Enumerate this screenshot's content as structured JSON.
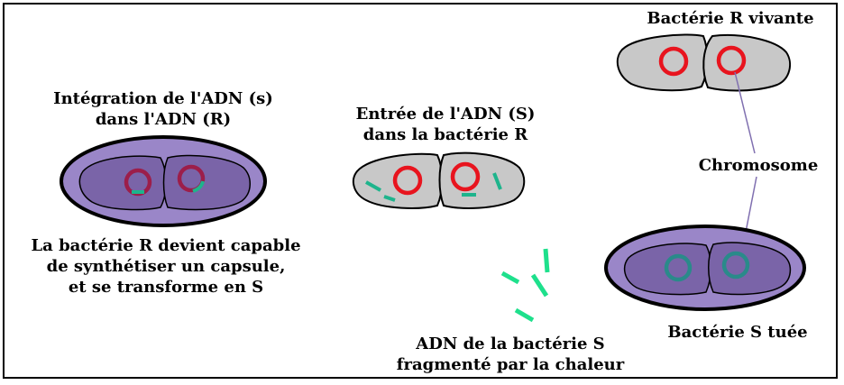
{
  "labels": {
    "bacteria_r_alive": "Bactérie R vivante",
    "integration_line1": "Intégration de l'ADN (s)",
    "integration_line2": "dans l'ADN (R)",
    "entry_line1": "Entrée de l'ADN (S)",
    "entry_line2": "dans la bactérie R",
    "chromosome": "Chromosome",
    "transform_line1": "La bactérie R devient capable",
    "transform_line2": "de synthétiser un capsule,",
    "transform_line3": "et se transforme en S",
    "bacteria_s_killed": "Bactérie S tuée",
    "dna_line1": "ADN de la bactérie S",
    "dna_line2": "fragmenté par la chaleur"
  },
  "colors": {
    "r_cell_fill": "#c8c8c8",
    "s_capsule_fill": "#9a86c8",
    "s_cell_fill": "#7a64a8",
    "r_chromosome": "#e8141e",
    "s_chromosome": "#2a8a8a",
    "integrated_chromosome": "#9c1e4a",
    "dna_fragment": "#1ee08c",
    "pointer_line": "#8070b0"
  }
}
